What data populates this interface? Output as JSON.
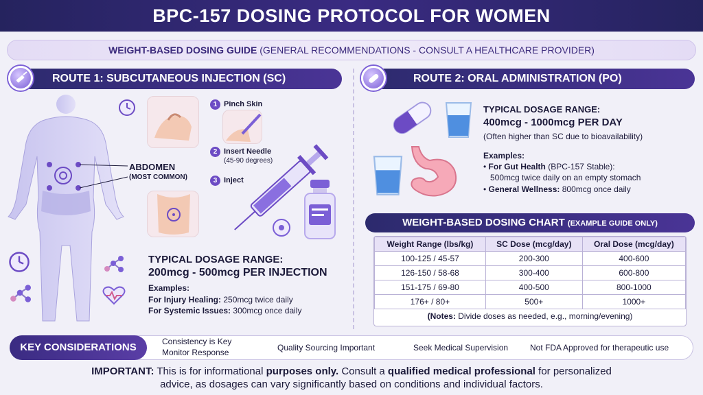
{
  "title": "BPC-157 DOSING PROTOCOL FOR WOMEN",
  "guide_banner": {
    "bold": "WEIGHT-BASED DOSING GUIDE",
    "rest": "(GENERAL RECOMMENDATIONS - CONSULT A HEALTHCARE PROVIDER)"
  },
  "route1": {
    "heading": "ROUTE 1: SUBCUTANEOUS INJECTION (SC)",
    "icon": "syringe-icon",
    "site_label": "ABDOMEN",
    "site_sub": "(MOST COMMON)",
    "steps": [
      {
        "num": "1",
        "label": "Pinch Skin",
        "sub": ""
      },
      {
        "num": "2",
        "label": "Insert Needle",
        "sub": "(45-90 degrees)"
      },
      {
        "num": "3",
        "label": "Inject",
        "sub": ""
      }
    ],
    "dosage_label": "TYPICAL DOSAGE RANGE:",
    "dosage_value": "200mcg - 500mcg PER INJECTION",
    "examples_label": "Examples:",
    "examples": [
      {
        "bold": "For Injury Healing:",
        "text": "250mcg twice daily"
      },
      {
        "bold": "For Systemic Issues:",
        "text": "300mcg once daily"
      }
    ]
  },
  "route2": {
    "heading": "ROUTE 2: ORAL ADMINISTRATION (PO)",
    "icon": "capsule-icon",
    "dosage_label": "TYPICAL DOSAGE RANGE:",
    "dosage_value": "400mcg - 1000mcg PER DAY",
    "dosage_note": "(Often higher than SC due to bioavailability)",
    "examples_label": "Examples:",
    "examples": [
      {
        "bold": "For Gut Health",
        "text": "(BPC-157 Stable):",
        "line2": "500mcg twice daily on an empty stomach"
      },
      {
        "bold": "General Wellness:",
        "text": "800mcg once daily",
        "line2": ""
      }
    ]
  },
  "chart": {
    "heading_bold": "WEIGHT-BASED DOSING CHART",
    "heading_rest": "(EXAMPLE GUIDE ONLY)",
    "columns": [
      "Weight Range (lbs/kg)",
      "SC Dose (mcg/day)",
      "Oral Dose (mcg/day)"
    ],
    "rows": [
      [
        "100-125 / 45-57",
        "200-300",
        "400-600"
      ],
      [
        "126-150 / 58-68",
        "300-400",
        "600-800"
      ],
      [
        "151-175 / 69-80",
        "400-500",
        "800-1000"
      ],
      [
        "176+ / 80+",
        "500+",
        "1000+"
      ]
    ],
    "notes_bold": "(Notes:",
    "notes_rest": "Divide doses as needed, e.g., morning/evening)"
  },
  "key_considerations": {
    "label": "KEY CONSIDERATIONS",
    "items": [
      "Consistency is Key",
      "Monitor Response",
      "Quality Sourcing Important",
      "Seek Medical Supervision",
      "Not FDA Approved for therapeutic use"
    ]
  },
  "important": {
    "p1_bold": "IMPORTANT:",
    "p1_text": "This is for informational",
    "p1_bold2": "purposes only.",
    "p1_text2": "Consult a",
    "p1_bold3": "qualified medical professional",
    "p1_text3": "for personalized",
    "p2": "advice, as dosages can vary significantly based on conditions and individual factors."
  },
  "colors": {
    "header": "#2c2a6d",
    "accent": "#6c4bc4",
    "background": "#f1f0f8"
  }
}
